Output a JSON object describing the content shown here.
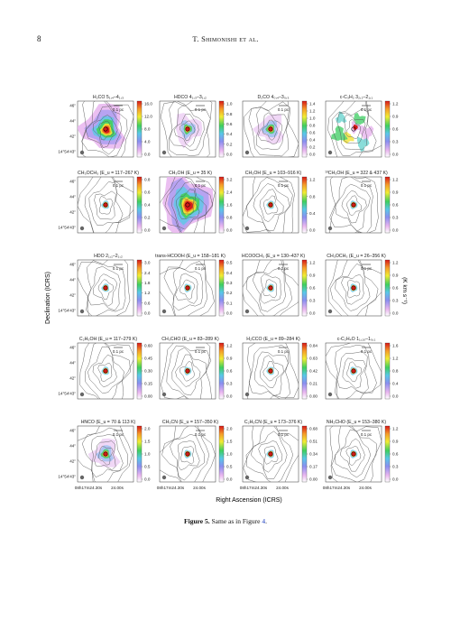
{
  "header": {
    "page_number": "8",
    "running_title": "T. Shimonishi et al."
  },
  "figure": {
    "ylabel": "Declination (ICRS)",
    "xlabel": "Right Ascension (ICRS)",
    "cbar_label": "(K km s⁻¹)",
    "scalebar_label": "0.1 pc",
    "dec_ticks": [
      "46\"",
      "44\"",
      "42\"",
      "14°54′43\""
    ],
    "ra_ticks": [
      "08h17m24.30s",
      "24.00s"
    ],
    "panels": [
      {
        "title": "H₂CO 5₁,₄–4₁,₃",
        "ticks": [
          "16.0",
          "12.0",
          "8.0",
          "4.0",
          "0.0"
        ],
        "palette": "strong"
      },
      {
        "title": "HDCO 4₁,₃–3₁,₂",
        "ticks": [
          "1.0",
          "0.8",
          "0.6",
          "0.4",
          "0.2",
          "0.0"
        ],
        "palette": "weak"
      },
      {
        "title": "D₂CO 4₀,₄–3₀,₃",
        "ticks": [
          "1.4",
          "1.2",
          "1.0",
          "0.8",
          "0.6",
          "0.4",
          "0.2",
          "0.0"
        ],
        "palette": "weak"
      },
      {
        "title": "c-C₃H₂ 3₂,₂–2₁,₁",
        "ticks": [
          "1.2",
          "0.9",
          "0.6",
          "0.3",
          "0.0"
        ],
        "palette": "clumpy"
      },
      {
        "title": "CH₃OCH₃ (E_u = 117–267 K)",
        "ticks": [
          "0.8",
          "0.6",
          "0.4",
          "0.2",
          "0.0"
        ],
        "palette": "point"
      },
      {
        "title": "CH₃OH (E_u = 35 K)",
        "ticks": [
          "3.2",
          "2.4",
          "1.6",
          "0.8",
          "0.0"
        ],
        "palette": "strong2"
      },
      {
        "title": "CH₃OH (E_u = 103–916 K)",
        "ticks": [
          "1.2",
          "0.8",
          "0.4",
          "0.0"
        ],
        "palette": "point"
      },
      {
        "title": "¹³CH₃OH (E_u = 322 & 437 K)",
        "ticks": [
          "1.2",
          "0.9",
          "0.6",
          "0.3",
          "0.0"
        ],
        "palette": "point"
      },
      {
        "title": "HDO 2₁,₁–2₁,₂",
        "ticks": [
          "3.0",
          "2.4",
          "1.8",
          "1.2",
          "0.6",
          "0.0"
        ],
        "palette": "point"
      },
      {
        "title": "trans-HCOOH (E_u = 158–181 K)",
        "ticks": [
          "0.5",
          "0.4",
          "0.3",
          "0.2",
          "0.1",
          "0.0"
        ],
        "palette": "point"
      },
      {
        "title": "HCOOCH₃ (E_u = 130–437 K)",
        "ticks": [
          "1.2",
          "0.9",
          "0.6",
          "0.3",
          "0.0"
        ],
        "palette": "point"
      },
      {
        "title": "CH₃OCH₃ (E_u = 26–356 K)",
        "ticks": [
          "1.2",
          "0.9",
          "0.6",
          "0.3",
          "0.0"
        ],
        "palette": "point"
      },
      {
        "title": "C₂H₅OH (E_u = 117–279 K)",
        "ticks": [
          "0.60",
          "0.45",
          "0.30",
          "0.15",
          "0.00"
        ],
        "palette": "point"
      },
      {
        "title": "CH₃CHO (E_u = 83–289 K)",
        "ticks": [
          "1.2",
          "0.9",
          "0.6",
          "0.3",
          "0.0"
        ],
        "palette": "point"
      },
      {
        "title": "H₂CCO (E_u = 89–284 K)",
        "ticks": [
          "0.84",
          "0.63",
          "0.42",
          "0.21",
          "0.00"
        ],
        "palette": "point"
      },
      {
        "title": "c-C₂H₄O 1₁,₁₀–1₀,₁",
        "ticks": [
          "1.6",
          "1.2",
          "0.8",
          "0.4",
          "0.0"
        ],
        "palette": "point"
      },
      {
        "title": "HNCO (E_u = 70 & 113 K)",
        "ticks": [
          "2.0",
          "1.5",
          "1.0",
          "0.5",
          "0.0"
        ],
        "palette": "weak"
      },
      {
        "title": "CH₃CN (E_u = 157–350 K)",
        "ticks": [
          "2.0",
          "1.5",
          "1.0",
          "0.5",
          "0.0"
        ],
        "palette": "point"
      },
      {
        "title": "C₂H₅CN (E_u = 173–376 K)",
        "ticks": [
          "0.68",
          "0.51",
          "0.34",
          "0.17",
          "0.00"
        ],
        "palette": "point"
      },
      {
        "title": "NH₂CHO (E_u = 153–380 K)",
        "ticks": [
          "1.2",
          "0.9",
          "0.6",
          "0.3",
          "0.0"
        ],
        "palette": "point"
      }
    ]
  },
  "caption": {
    "label": "Figure 5.",
    "text": "Same as in Figure ",
    "ref": "4",
    "end": "."
  }
}
